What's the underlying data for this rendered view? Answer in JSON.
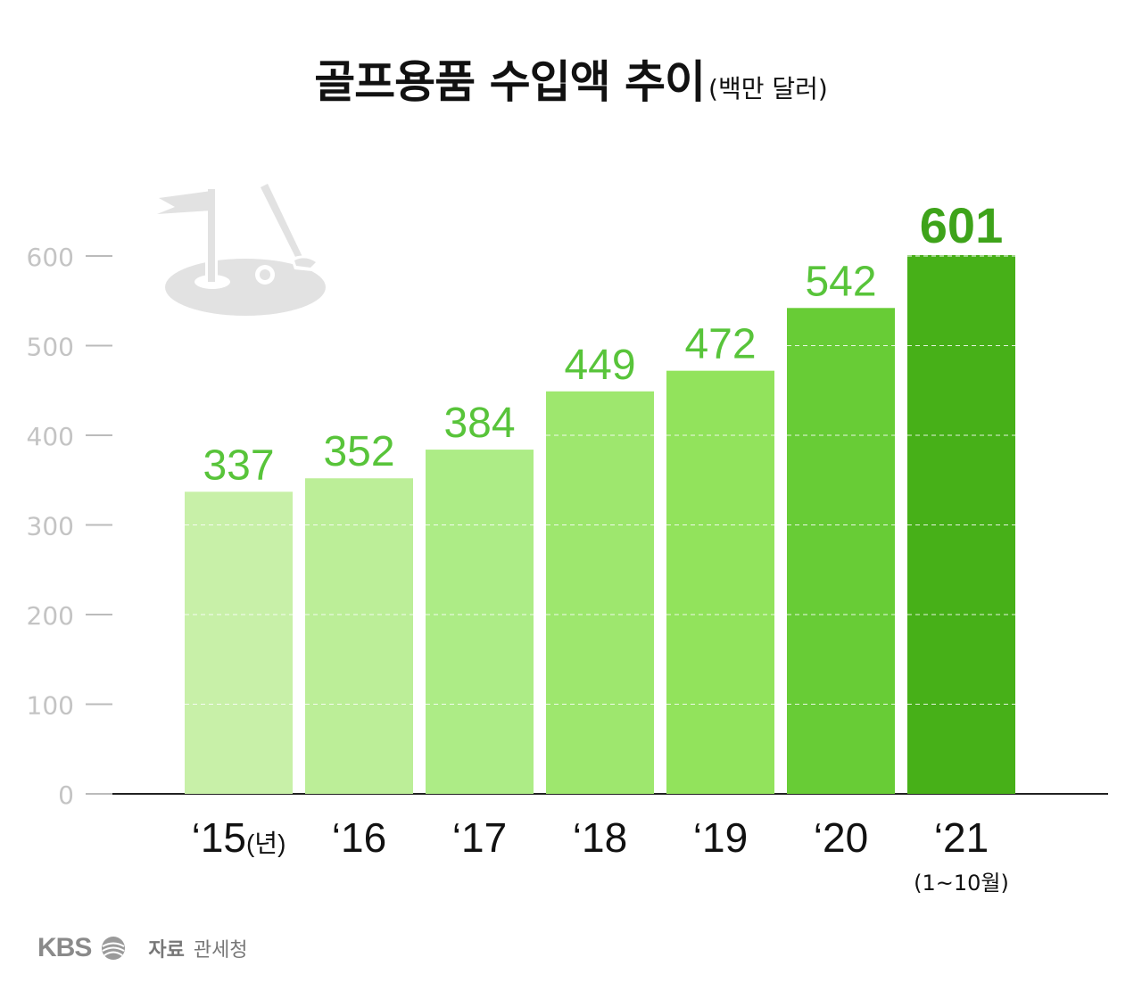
{
  "header": {
    "title": "골프용품 수입액 추이",
    "unit": "(백만 달러)"
  },
  "footer": {
    "brand": "KBS",
    "source_label": "자료",
    "source_value": "관세청"
  },
  "icon": "golf-flag-club-icon",
  "chart_data": {
    "type": "bar",
    "title": "골프용품 수입액 추이",
    "unit": "(백만 달러)",
    "categories": [
      "‘15(년)",
      "‘16",
      "‘17",
      "‘18",
      "‘19",
      "‘20",
      "‘21"
    ],
    "category_notes": [
      "",
      "",
      "",
      "",
      "",
      "",
      "(1~10월)"
    ],
    "values": [
      337,
      352,
      384,
      449,
      472,
      542,
      601
    ],
    "value_labels": [
      "337",
      "352",
      "384",
      "449",
      "472",
      "542",
      "601"
    ],
    "yticks": [
      "0",
      "100",
      "200",
      "300",
      "400",
      "500",
      "600"
    ],
    "ylim": [
      0,
      600
    ],
    "grid": "dashed, inside bars",
    "bar_colors": [
      "#c8f0a8",
      "#bcee98",
      "#adec86",
      "#9ee76e",
      "#92e35c",
      "#68cc36",
      "#47b018"
    ],
    "label_colors": [
      "#58c43a",
      "#58c43a",
      "#58c43a",
      "#58c43a",
      "#58c43a",
      "#58c43a",
      "#3ea31a"
    ]
  }
}
